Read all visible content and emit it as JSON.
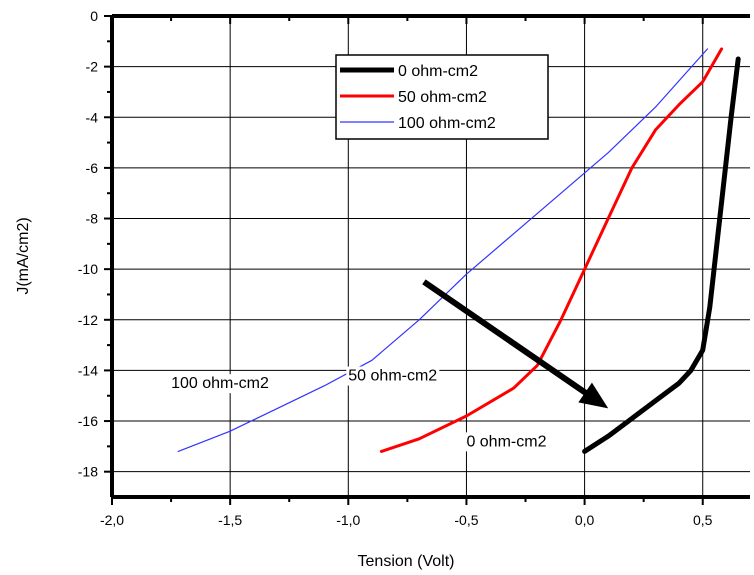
{
  "chart_data": {
    "type": "line",
    "xlabel": "Tension (Volt)",
    "ylabel": "J(mA/cm2)",
    "xlim": [
      -2.0,
      0.7
    ],
    "ylim": [
      -19,
      0
    ],
    "xticks": [
      "-2,0",
      "-1,5",
      "-1,0",
      "-0,5",
      "0,0",
      "0,5"
    ],
    "xtick_values": [
      -2.0,
      -1.5,
      -1.0,
      -0.5,
      0.0,
      0.5
    ],
    "yticks": [
      "0",
      "-2",
      "-4",
      "-6",
      "-8",
      "-10",
      "-12",
      "-14",
      "-16",
      "-18"
    ],
    "ytick_values": [
      0,
      -2,
      -4,
      -6,
      -8,
      -10,
      -12,
      -14,
      -16,
      -18
    ],
    "grid": true,
    "legend_position": "top-right",
    "series": [
      {
        "name": "0 ohm-cm2",
        "color": "#000000",
        "points": [
          [
            0.0,
            -17.2
          ],
          [
            0.1,
            -16.6
          ],
          [
            0.2,
            -15.9
          ],
          [
            0.3,
            -15.2
          ],
          [
            0.4,
            -14.5
          ],
          [
            0.45,
            -14.0
          ],
          [
            0.5,
            -13.2
          ],
          [
            0.53,
            -11.5
          ],
          [
            0.56,
            -9.0
          ],
          [
            0.59,
            -6.5
          ],
          [
            0.62,
            -4.0
          ],
          [
            0.65,
            -1.7
          ]
        ]
      },
      {
        "name": "50 ohm-cm2",
        "color": "#ff0000",
        "points": [
          [
            -0.86,
            -17.2
          ],
          [
            -0.7,
            -16.7
          ],
          [
            -0.5,
            -15.8
          ],
          [
            -0.3,
            -14.7
          ],
          [
            -0.2,
            -13.8
          ],
          [
            -0.1,
            -12.0
          ],
          [
            0.0,
            -10.0
          ],
          [
            0.1,
            -8.0
          ],
          [
            0.2,
            -6.0
          ],
          [
            0.3,
            -4.5
          ],
          [
            0.4,
            -3.5
          ],
          [
            0.5,
            -2.6
          ],
          [
            0.58,
            -1.3
          ]
        ]
      },
      {
        "name": "100 ohm-cm2",
        "color": "#3333ff",
        "points": [
          [
            -1.72,
            -17.2
          ],
          [
            -1.5,
            -16.4
          ],
          [
            -1.3,
            -15.5
          ],
          [
            -1.1,
            -14.6
          ],
          [
            -0.9,
            -13.6
          ],
          [
            -0.7,
            -12.0
          ],
          [
            -0.5,
            -10.2
          ],
          [
            -0.3,
            -8.6
          ],
          [
            -0.1,
            -7.0
          ],
          [
            0.1,
            -5.4
          ],
          [
            0.3,
            -3.6
          ],
          [
            0.52,
            -1.3
          ]
        ]
      }
    ],
    "annotations": [
      {
        "text": "100 ohm-cm2",
        "x": -1.75,
        "y": -14.7
      },
      {
        "text": "50 ohm-cm2",
        "x": -1.0,
        "y": -14.4
      },
      {
        "text": "0 ohm-cm2",
        "x": -0.5,
        "y": -17.0
      }
    ],
    "arrow": {
      "x1": -0.68,
      "y1": -10.5,
      "x2": 0.1,
      "y2": -15.5
    }
  }
}
